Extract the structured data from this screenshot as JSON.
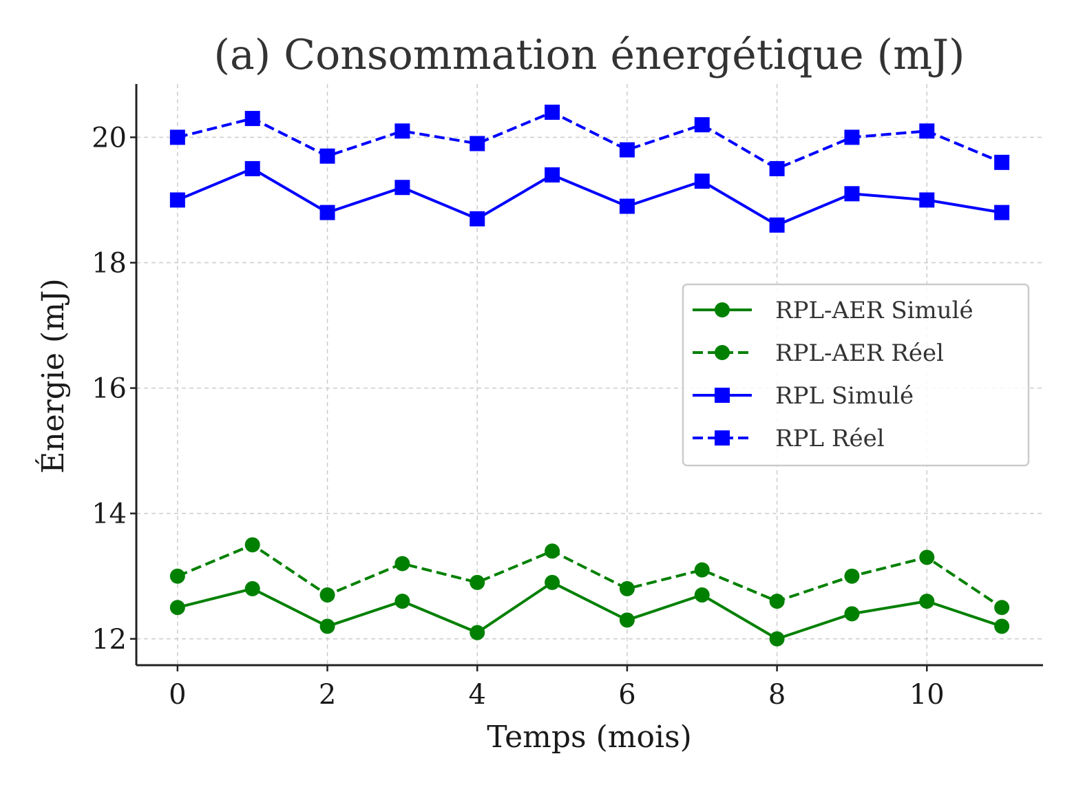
{
  "chart_data": {
    "type": "line",
    "title": "(a) Consommation énergétique (mJ)",
    "xlabel": "Temps (mois)",
    "ylabel": "Énergie (mJ)",
    "x": [
      0,
      1,
      2,
      3,
      4,
      5,
      6,
      7,
      8,
      9,
      10,
      11
    ],
    "xlim": [
      -0.55,
      11.55
    ],
    "ylim": [
      11.58,
      20.85
    ],
    "xticks": [
      0,
      2,
      4,
      6,
      8,
      10
    ],
    "yticks": [
      12,
      14,
      16,
      18,
      20
    ],
    "grid": true,
    "legend_position": "center-right",
    "series": [
      {
        "name": "RPL-AER Simulé",
        "color": "#008000",
        "linestyle": "solid",
        "marker": "circle",
        "values": [
          12.5,
          12.8,
          12.2,
          12.6,
          12.1,
          12.9,
          12.3,
          12.7,
          12.0,
          12.4,
          12.6,
          12.2
        ]
      },
      {
        "name": "RPL-AER Réel",
        "color": "#008000",
        "linestyle": "dashed",
        "marker": "circle",
        "values": [
          13.0,
          13.5,
          12.7,
          13.2,
          12.9,
          13.4,
          12.8,
          13.1,
          12.6,
          13.0,
          13.3,
          12.5
        ]
      },
      {
        "name": "RPL Simulé",
        "color": "#0000ff",
        "linestyle": "solid",
        "marker": "square",
        "values": [
          19.0,
          19.5,
          18.8,
          19.2,
          18.7,
          19.4,
          18.9,
          19.3,
          18.6,
          19.1,
          19.0,
          18.8
        ]
      },
      {
        "name": "RPL Réel",
        "color": "#0000ff",
        "linestyle": "dashed",
        "marker": "square",
        "values": [
          20.0,
          20.3,
          19.7,
          20.1,
          19.9,
          20.4,
          19.8,
          20.2,
          19.5,
          20.0,
          20.1,
          19.6
        ]
      }
    ]
  }
}
